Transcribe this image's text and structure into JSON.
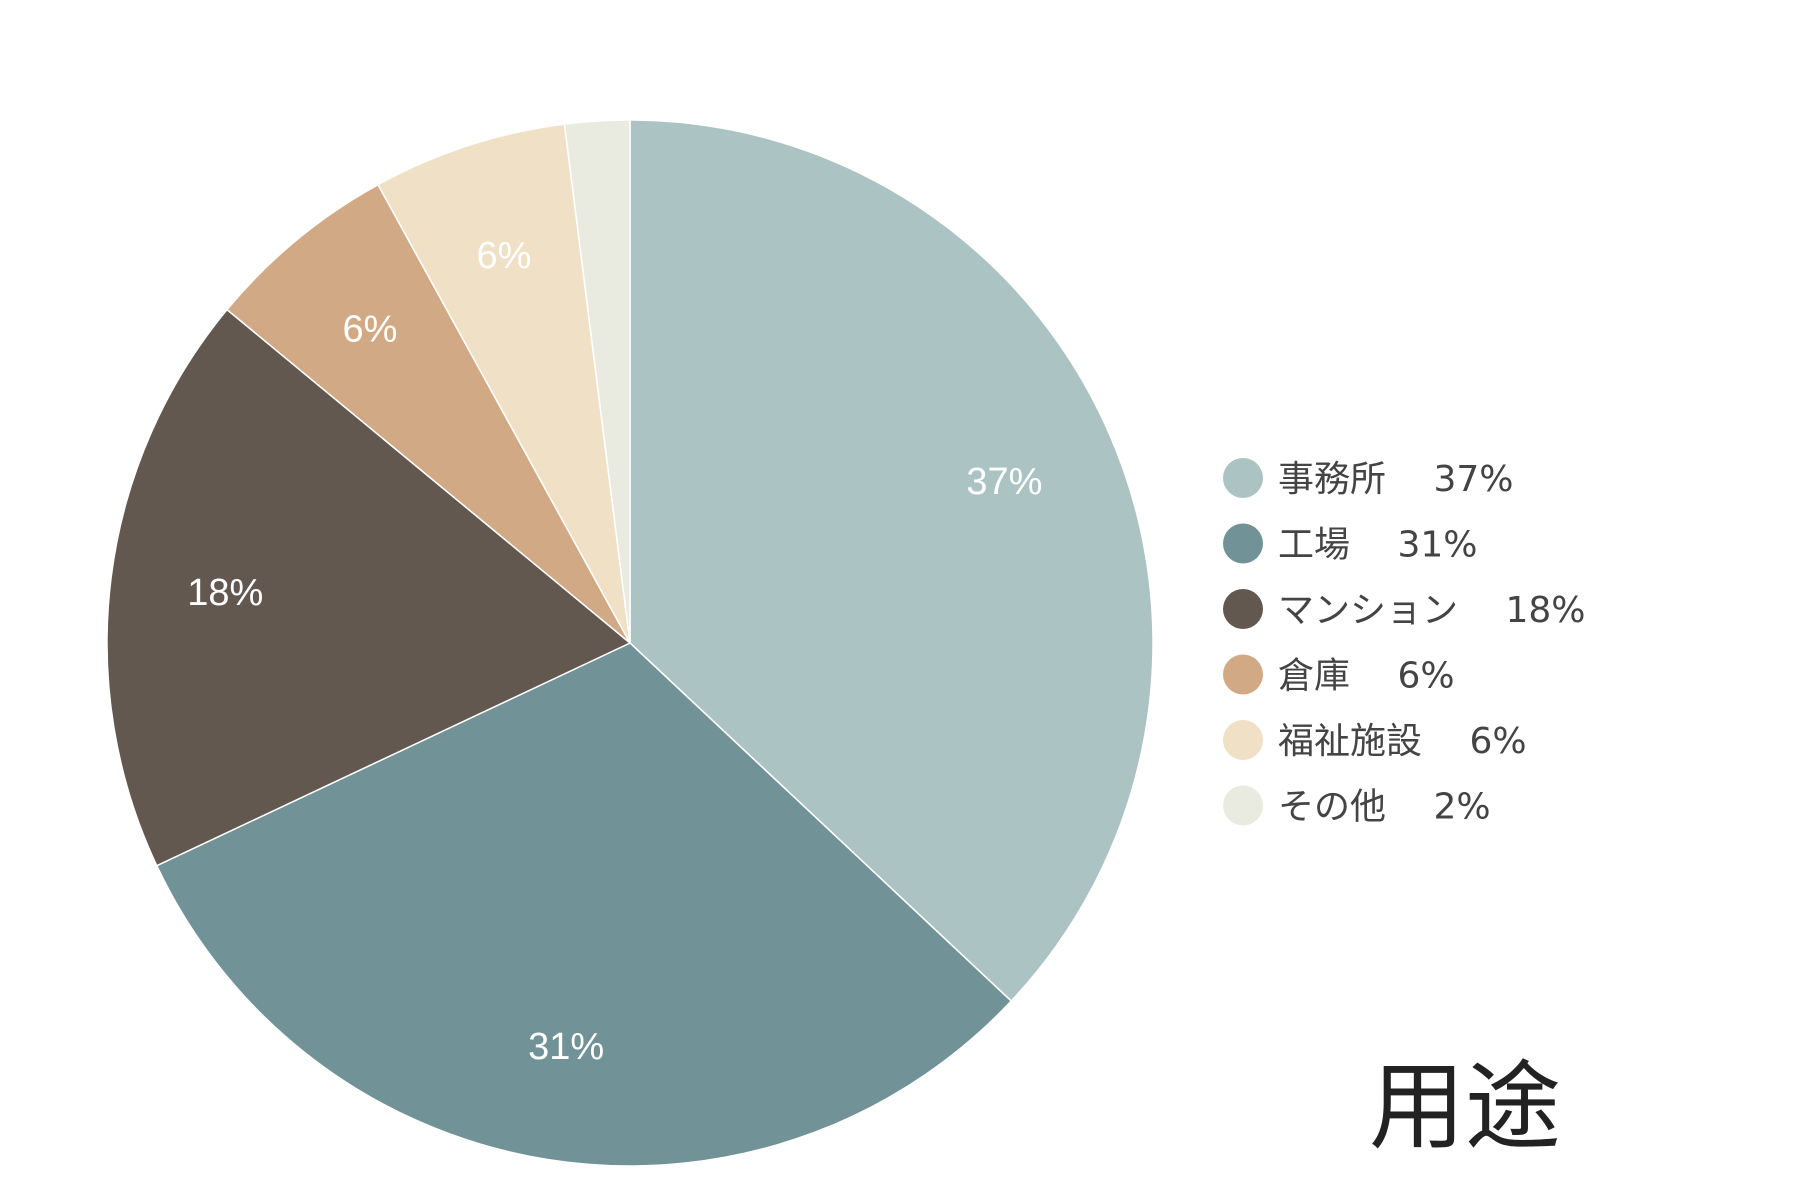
{
  "chart_data": {
    "type": "pie",
    "title": "用途",
    "legend": "right",
    "slices": [
      {
        "name": "事務所",
        "value": 37,
        "label": "37%",
        "legend_label": "事務所　 37%",
        "color": "#acc3c3"
      },
      {
        "name": "工場",
        "value": 31,
        "label": "31%",
        "legend_label": "工場　 31%",
        "color": "#719398"
      },
      {
        "name": "マンション",
        "value": 18,
        "label": "18%",
        "legend_label": "マンション　 18%",
        "color": "#62584f"
      },
      {
        "name": "倉庫",
        "value": 6,
        "label": "6%",
        "legend_label": "倉庫　 6%",
        "color": "#d2a985"
      },
      {
        "name": "福祉施設",
        "value": 6,
        "label": "6%",
        "legend_label": "福祉施設　 6%",
        "color": "#efe0c6"
      },
      {
        "name": "その他",
        "value": 2,
        "label": "",
        "legend_label": "その他　 2%",
        "color": "#e9ebe0"
      }
    ]
  }
}
